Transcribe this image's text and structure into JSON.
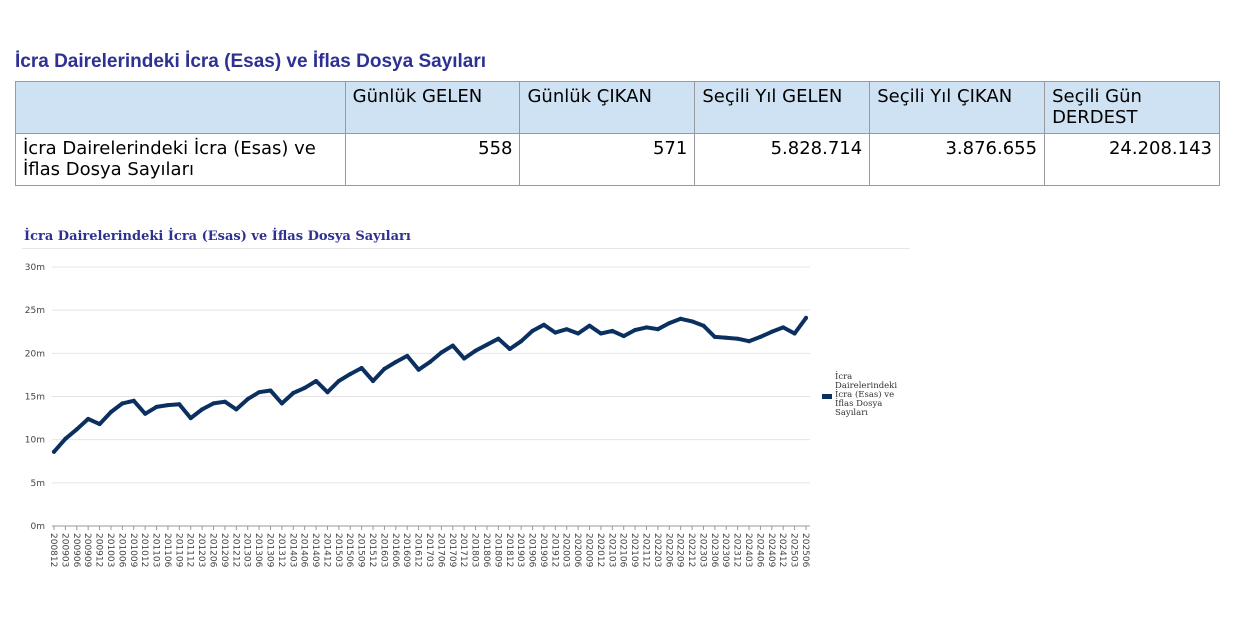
{
  "page": {
    "title": "İcra Dairelerindeki İcra (Esas) ve İflas Dosya Sayıları"
  },
  "table": {
    "headers": [
      "",
      "Günlük GELEN",
      "Günlük ÇIKAN",
      "Seçili Yıl GELEN",
      "Seçili Yıl ÇIKAN",
      "Seçili Gün DERDEST"
    ],
    "row": [
      "İcra Dairelerindeki İcra (Esas) ve İflas Dosya Sayıları",
      "558",
      "571",
      "5.828.714",
      "3.876.655",
      "24.208.143"
    ],
    "header_color": "#cfe2f3"
  },
  "chart_data": {
    "type": "line",
    "title": "İcra Dairelerindeki İcra (Esas) ve İflas Dosya Sayıları",
    "xlabel": "",
    "ylabel": "",
    "ylim": [
      0,
      30000000
    ],
    "yticks": [
      {
        "value": 0,
        "label": "0m"
      },
      {
        "value": 5000000,
        "label": "5m"
      },
      {
        "value": 10000000,
        "label": "10m"
      },
      {
        "value": 15000000,
        "label": "15m"
      },
      {
        "value": 20000000,
        "label": "20m"
      },
      {
        "value": 25000000,
        "label": "25m"
      },
      {
        "value": 30000000,
        "label": "30m"
      }
    ],
    "x_tick_labels": [
      "200812",
      "200903",
      "200906",
      "200909",
      "200912",
      "201003",
      "201006",
      "201009",
      "201012",
      "201103",
      "201106",
      "201109",
      "201112",
      "201203",
      "201206",
      "201209",
      "201212",
      "201303",
      "201306",
      "201309",
      "201312",
      "201403",
      "201406",
      "201409",
      "201412",
      "201503",
      "201506",
      "201509",
      "201512",
      "201603",
      "201606",
      "201609",
      "201612",
      "201703",
      "201706",
      "201709",
      "201712",
      "201803",
      "201806",
      "201809",
      "201812",
      "201903",
      "201906",
      "201909",
      "201912",
      "202003",
      "202006",
      "202009",
      "202012",
      "202103",
      "202106",
      "202109",
      "202112",
      "202203",
      "202206",
      "202209",
      "202212",
      "202303",
      "202306",
      "202309",
      "202312",
      "202403",
      "202406",
      "202409",
      "202412",
      "202503",
      "202506"
    ],
    "grid": true,
    "legend_position": "right",
    "series": [
      {
        "name": "İcra Dairelerindeki İcra (Esas) ve İflas Dosya Sayıları",
        "color": "#0b3060",
        "values": [
          8600000,
          10100000,
          11200000,
          12400000,
          11800000,
          13200000,
          14200000,
          14500000,
          13000000,
          13800000,
          14000000,
          14100000,
          12500000,
          13500000,
          14200000,
          14400000,
          13500000,
          14700000,
          15500000,
          15700000,
          14200000,
          15400000,
          16000000,
          16800000,
          15500000,
          16800000,
          17600000,
          18300000,
          16800000,
          18200000,
          19000000,
          19700000,
          18100000,
          19000000,
          20100000,
          20900000,
          19400000,
          20300000,
          21000000,
          21700000,
          20500000,
          21400000,
          22600000,
          23300000,
          22400000,
          22800000,
          22300000,
          23200000,
          22300000,
          22600000,
          22000000,
          22700000,
          23000000,
          22800000,
          23500000,
          24000000,
          23700000,
          23200000,
          21900000,
          21800000,
          21700000,
          21400000,
          21900000,
          22500000,
          23000000,
          22300000,
          24100000
        ]
      }
    ]
  }
}
